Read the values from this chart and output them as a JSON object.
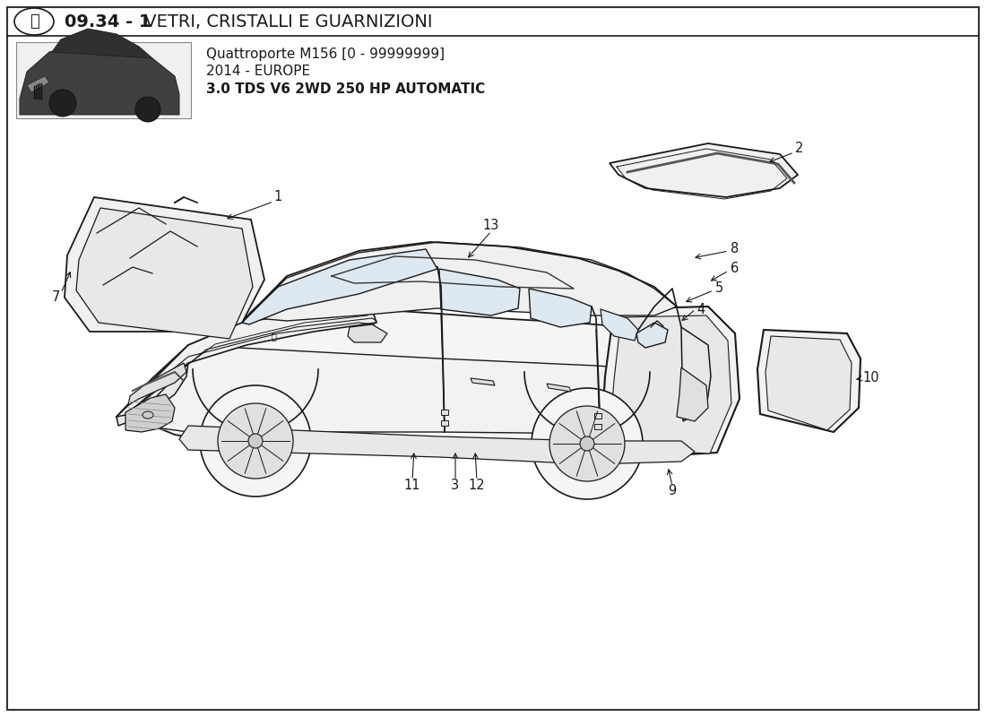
{
  "title_bold": "09.34 - 1",
  "title_normal": " VETRI, CRISTALLI E GUARNIZIONI",
  "sub1": "Quattroporte M156 [0 - 99999999]",
  "sub2": "2014 - EUROPE",
  "sub3": "3.0 TDS V6 2WD 250 HP AUTOMATIC",
  "bg": "#ffffff",
  "lc": "#1a1a1a",
  "tc": "#1a1a1a"
}
